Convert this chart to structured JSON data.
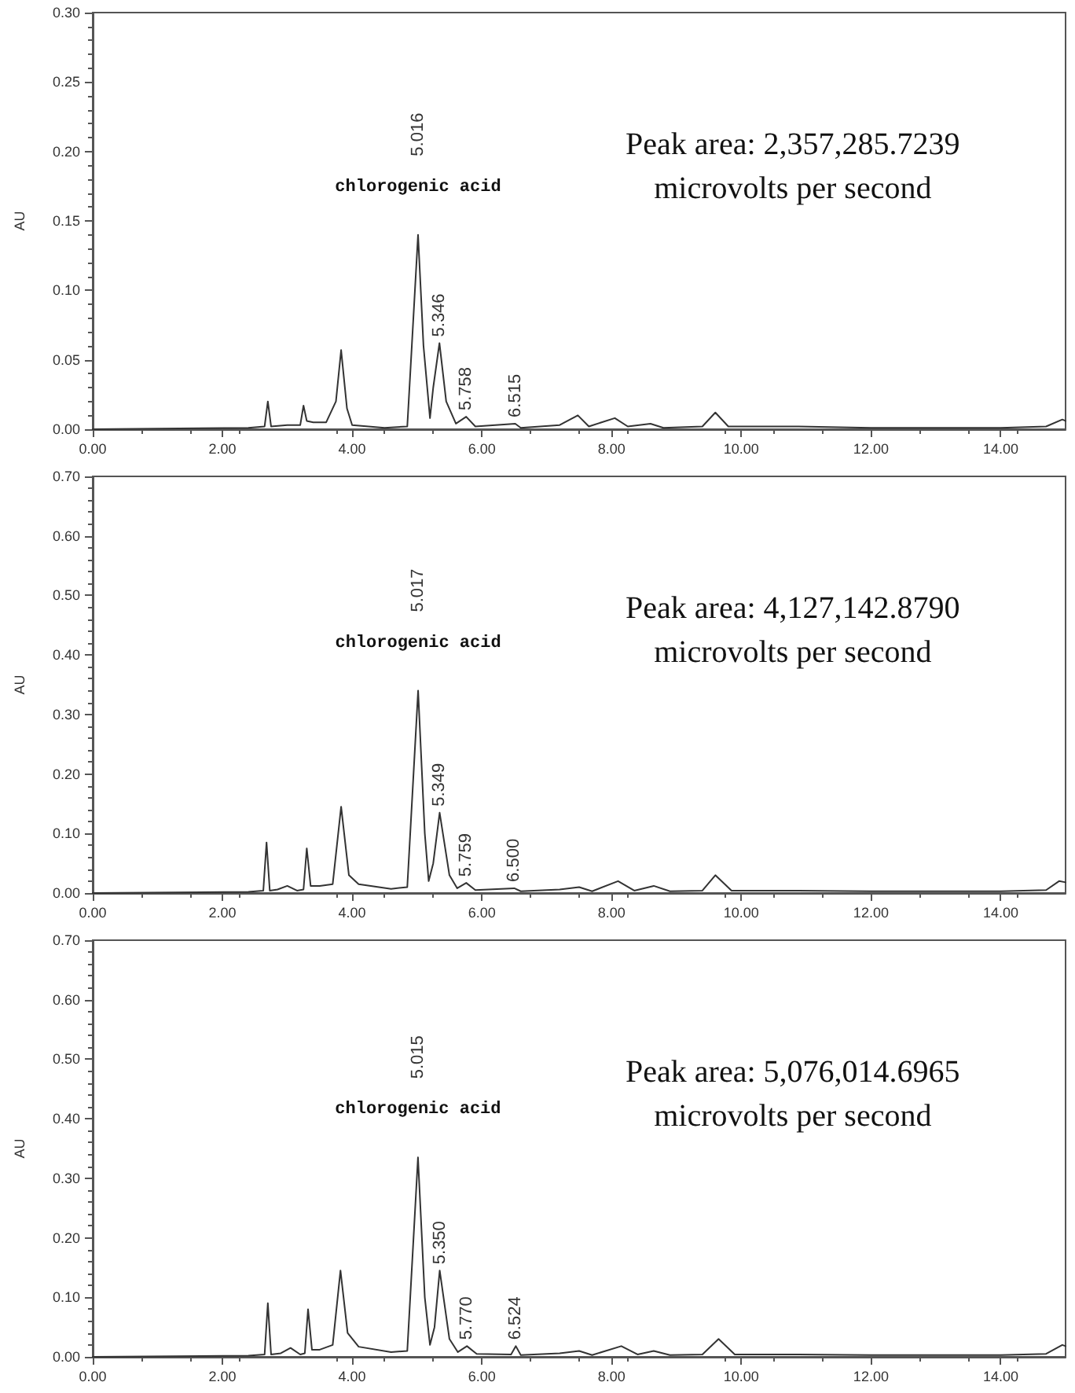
{
  "chart_data": [
    {
      "type": "line",
      "ylabel": "AU",
      "color": "#333333",
      "grid": false,
      "marker": "none",
      "line_style": "solid",
      "xlim": [
        0,
        15
      ],
      "ylim": [
        0,
        0.3
      ],
      "xticks": [
        {
          "value": 0,
          "label": "0.00"
        },
        {
          "value": 2,
          "label": "2.00"
        },
        {
          "value": 4,
          "label": "4.00"
        },
        {
          "value": 6,
          "label": "6.00"
        },
        {
          "value": 8,
          "label": "8.00"
        },
        {
          "value": 10,
          "label": "10.00"
        },
        {
          "value": 12,
          "label": "12.00"
        },
        {
          "value": 14,
          "label": "14.00"
        }
      ],
      "yticks": [
        {
          "value": 0,
          "label": "0.00"
        },
        {
          "value": 0.05,
          "label": "0.05"
        },
        {
          "value": 0.1,
          "label": "0.10"
        },
        {
          "value": 0.15,
          "label": "0.15"
        },
        {
          "value": 0.2,
          "label": "0.20"
        },
        {
          "value": 0.25,
          "label": "0.25"
        },
        {
          "value": 0.3,
          "label": "0.30"
        }
      ],
      "x": [
        0,
        2.4,
        2.65,
        2.7,
        2.75,
        3.0,
        3.2,
        3.25,
        3.3,
        3.4,
        3.6,
        3.75,
        3.83,
        3.92,
        4.0,
        4.5,
        4.85,
        4.92,
        5.016,
        5.1,
        5.2,
        5.25,
        5.346,
        5.45,
        5.6,
        5.758,
        5.9,
        6.515,
        6.6,
        7.2,
        7.48,
        7.65,
        8.05,
        8.25,
        8.6,
        8.8,
        9.4,
        9.6,
        9.8,
        10.8,
        12,
        14,
        14.7,
        14.95,
        15
      ],
      "values": [
        0,
        0.001,
        0.002,
        0.02,
        0.002,
        0.003,
        0.003,
        0.017,
        0.006,
        0.005,
        0.005,
        0.02,
        0.057,
        0.015,
        0.003,
        0.001,
        0.002,
        0.06,
        0.14,
        0.06,
        0.008,
        0.03,
        0.062,
        0.02,
        0.004,
        0.009,
        0.002,
        0.004,
        0.001,
        0.003,
        0.01,
        0.002,
        0.008,
        0.002,
        0.004,
        0.001,
        0.002,
        0.012,
        0.002,
        0.002,
        0.001,
        0.001,
        0.002,
        0.007,
        0.006
      ],
      "annotations": [
        "5.016",
        "chlorogenic acid",
        {
          "text": "5.346",
          "x": 5.346,
          "y": 0.062
        },
        {
          "text": "5.758",
          "x": 5.758,
          "y": 0.009
        },
        {
          "text": "6.515",
          "x": 6.515,
          "y": 0.004
        },
        "Peak area: 2,357,285.7239\nmicrovolts per second"
      ]
    },
    {
      "type": "line",
      "ylabel": "AU",
      "color": "#333333",
      "grid": false,
      "marker": "none",
      "line_style": "solid",
      "xlim": [
        0,
        15
      ],
      "ylim": [
        0,
        0.7
      ],
      "xticks": [
        {
          "value": 0,
          "label": "0.00"
        },
        {
          "value": 2,
          "label": "2.00"
        },
        {
          "value": 4,
          "label": "4.00"
        },
        {
          "value": 6,
          "label": "6.00"
        },
        {
          "value": 8,
          "label": "8.00"
        },
        {
          "value": 10,
          "label": "10.00"
        },
        {
          "value": 12,
          "label": "12.00"
        },
        {
          "value": 14,
          "label": "14.00"
        }
      ],
      "yticks": [
        {
          "value": 0,
          "label": "0.00"
        },
        {
          "value": 0.1,
          "label": "0.10"
        },
        {
          "value": 0.2,
          "label": "0.20"
        },
        {
          "value": 0.3,
          "label": "0.30"
        },
        {
          "value": 0.4,
          "label": "0.40"
        },
        {
          "value": 0.5,
          "label": "0.50"
        },
        {
          "value": 0.6,
          "label": "0.60"
        },
        {
          "value": 0.7,
          "label": "0.70"
        }
      ],
      "x": [
        0,
        2.4,
        2.63,
        2.68,
        2.73,
        2.85,
        3.0,
        3.15,
        3.25,
        3.3,
        3.36,
        3.5,
        3.7,
        3.83,
        3.95,
        4.1,
        4.6,
        4.85,
        5.017,
        5.12,
        5.18,
        5.25,
        5.349,
        5.5,
        5.62,
        5.759,
        5.9,
        6.5,
        6.6,
        7.2,
        7.5,
        7.7,
        8.1,
        8.35,
        8.65,
        8.9,
        9.4,
        9.6,
        9.85,
        10.8,
        12,
        14,
        14.7,
        14.9,
        15
      ],
      "values": [
        0,
        0.002,
        0.004,
        0.085,
        0.004,
        0.006,
        0.012,
        0.004,
        0.006,
        0.075,
        0.012,
        0.012,
        0.015,
        0.145,
        0.03,
        0.015,
        0.007,
        0.01,
        0.34,
        0.1,
        0.02,
        0.05,
        0.135,
        0.03,
        0.008,
        0.017,
        0.005,
        0.008,
        0.003,
        0.006,
        0.01,
        0.003,
        0.02,
        0.004,
        0.012,
        0.003,
        0.004,
        0.03,
        0.004,
        0.004,
        0.003,
        0.003,
        0.005,
        0.02,
        0.018
      ],
      "annotations": [
        "5.017",
        "chlorogenic acid",
        {
          "text": "5.349",
          "x": 5.349,
          "y": 0.135
        },
        {
          "text": "5.759",
          "x": 5.759,
          "y": 0.017
        },
        {
          "text": "6.500",
          "x": 6.5,
          "y": 0.008
        },
        "Peak area: 4,127,142.8790\nmicrovolts per second"
      ]
    },
    {
      "type": "line",
      "ylabel": "AU",
      "color": "#333333",
      "grid": false,
      "marker": "none",
      "line_style": "solid",
      "xlim": [
        0,
        15
      ],
      "ylim": [
        0,
        0.7
      ],
      "xticks": [
        {
          "value": 0,
          "label": "0.00"
        },
        {
          "value": 2,
          "label": "2.00"
        },
        {
          "value": 4,
          "label": "4.00"
        },
        {
          "value": 6,
          "label": "6.00"
        },
        {
          "value": 8,
          "label": "8.00"
        },
        {
          "value": 10,
          "label": "10.00"
        },
        {
          "value": 12,
          "label": "12.00"
        },
        {
          "value": 14,
          "label": "14.00"
        }
      ],
      "yticks": [
        {
          "value": 0,
          "label": "0.00"
        },
        {
          "value": 0.1,
          "label": "0.10"
        },
        {
          "value": 0.2,
          "label": "0.20"
        },
        {
          "value": 0.3,
          "label": "0.30"
        },
        {
          "value": 0.4,
          "label": "0.40"
        },
        {
          "value": 0.5,
          "label": "0.50"
        },
        {
          "value": 0.6,
          "label": "0.60"
        },
        {
          "value": 0.7,
          "label": "0.70"
        }
      ],
      "x": [
        0,
        2.4,
        2.65,
        2.7,
        2.75,
        2.9,
        3.05,
        3.2,
        3.27,
        3.32,
        3.38,
        3.5,
        3.7,
        3.82,
        3.93,
        4.1,
        4.6,
        4.85,
        5.015,
        5.12,
        5.2,
        5.27,
        5.35,
        5.5,
        5.63,
        5.77,
        5.92,
        6.45,
        6.524,
        6.6,
        7.2,
        7.5,
        7.7,
        8.15,
        8.4,
        8.65,
        8.9,
        9.4,
        9.65,
        9.9,
        10.8,
        12,
        14,
        14.7,
        14.95,
        15
      ],
      "values": [
        0,
        0.002,
        0.004,
        0.09,
        0.004,
        0.006,
        0.015,
        0.004,
        0.006,
        0.08,
        0.012,
        0.012,
        0.02,
        0.145,
        0.04,
        0.017,
        0.008,
        0.01,
        0.335,
        0.1,
        0.02,
        0.05,
        0.145,
        0.03,
        0.008,
        0.018,
        0.005,
        0.004,
        0.018,
        0.003,
        0.006,
        0.01,
        0.003,
        0.018,
        0.004,
        0.01,
        0.003,
        0.004,
        0.03,
        0.004,
        0.004,
        0.003,
        0.003,
        0.005,
        0.02,
        0.018
      ],
      "annotations": [
        "5.015",
        "chlorogenic acid",
        {
          "text": "5.350",
          "x": 5.35,
          "y": 0.145
        },
        {
          "text": "5.770",
          "x": 5.77,
          "y": 0.018
        },
        {
          "text": "6.524",
          "x": 6.524,
          "y": 0.018
        },
        "Peak area: 5,076,014.6965\nmicrovolts per second"
      ]
    }
  ]
}
